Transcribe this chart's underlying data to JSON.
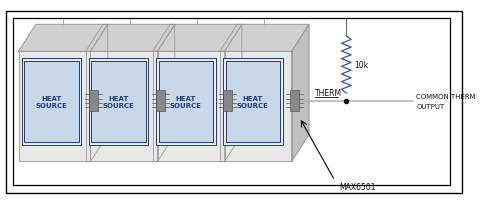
{
  "bg_color": "#ffffff",
  "border_color": "#000000",
  "card_face_color": "#e8e8e8",
  "card_top_color": "#d0d0d0",
  "card_right_color": "#c0c0c0",
  "card_edge_color": "#999999",
  "heat_source_cream": "#f0edd8",
  "heat_source_bg": "#c8d8e8",
  "heat_source_border": "#1a3a8a",
  "heat_source_text_color": "#1a3a8a",
  "connector_color": "#888888",
  "connector_edge": "#444444",
  "wire_color": "#b0b0b0",
  "bus_color": "#b0b0b0",
  "top_wire_color": "#000000",
  "resistor_color": "#3355aa",
  "node_color": "#111111",
  "text_color": "#111111",
  "therm_label": "THERM",
  "resistor_label": "10k",
  "output_label1": "COMMON THERM",
  "output_label2": "OUTPUT",
  "max_label": "MAX6501",
  "hs_label": "HEAT\nSOURCE",
  "num_cards": 4
}
